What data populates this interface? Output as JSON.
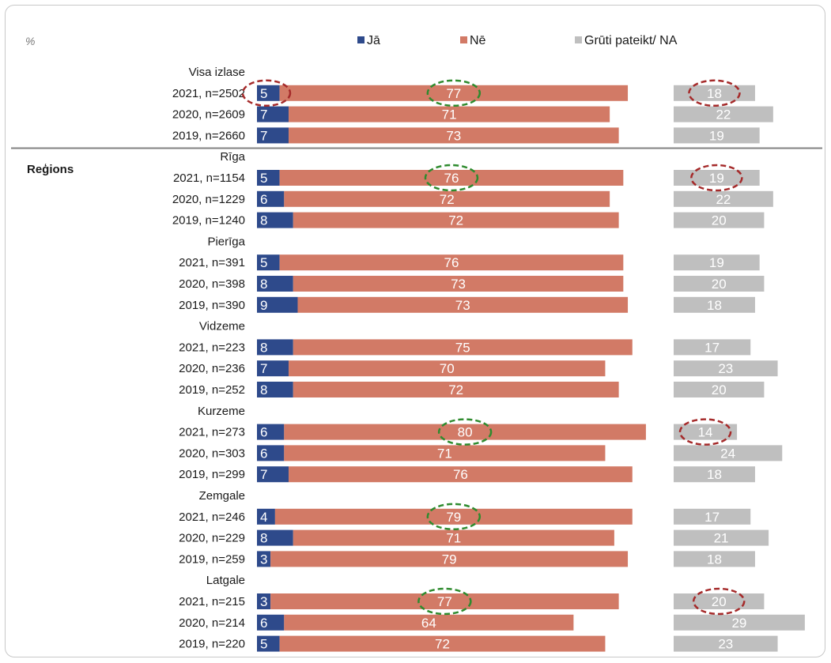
{
  "chart_data": {
    "type": "bar",
    "stacked_layout": "split",
    "unit_label": "%",
    "section_label": "Reģions",
    "colors": {
      "Jā": "#2e4a8b",
      "Nē": "#d27a66",
      "Grūti pateikt/ NA": "#bfbfbf",
      "circle_red": "#a52a2a",
      "circle_green": "#2e8b2e"
    },
    "series": [
      {
        "name": "Jā"
      },
      {
        "name": "Nē"
      },
      {
        "name": "Grūti pateikt/ NA"
      }
    ],
    "groups": [
      {
        "name": "Visa izlase",
        "rows": [
          {
            "label": "2021, n=2502",
            "values": [
              5,
              77,
              18
            ],
            "circled": [
              true,
              true,
              true
            ]
          },
          {
            "label": "2020, n=2609",
            "values": [
              7,
              71,
              22
            ]
          },
          {
            "label": "2019, n=2660",
            "values": [
              7,
              73,
              19
            ]
          }
        ]
      },
      {
        "name": "Rīga",
        "rows": [
          {
            "label": "2021, n=1154",
            "values": [
              5,
              76,
              19
            ],
            "circled": [
              false,
              true,
              true
            ]
          },
          {
            "label": "2020, n=1229",
            "values": [
              6,
              72,
              22
            ]
          },
          {
            "label": "2019, n=1240",
            "values": [
              8,
              72,
              20
            ]
          }
        ]
      },
      {
        "name": "Pierīga",
        "rows": [
          {
            "label": "2021, n=391",
            "values": [
              5,
              76,
              19
            ]
          },
          {
            "label": "2020, n=398",
            "values": [
              8,
              73,
              20
            ]
          },
          {
            "label": "2019, n=390",
            "values": [
              9,
              73,
              18
            ]
          }
        ]
      },
      {
        "name": "Vidzeme",
        "rows": [
          {
            "label": "2021, n=223",
            "values": [
              8,
              75,
              17
            ]
          },
          {
            "label": "2020, n=236",
            "values": [
              7,
              70,
              23
            ]
          },
          {
            "label": "2019, n=252",
            "values": [
              8,
              72,
              20
            ]
          }
        ]
      },
      {
        "name": "Kurzeme",
        "rows": [
          {
            "label": "2021, n=273",
            "values": [
              6,
              80,
              14
            ],
            "circled": [
              false,
              true,
              true
            ]
          },
          {
            "label": "2020, n=303",
            "values": [
              6,
              71,
              24
            ]
          },
          {
            "label": "2019, n=299",
            "values": [
              7,
              76,
              18
            ]
          }
        ]
      },
      {
        "name": "Zemgale",
        "rows": [
          {
            "label": "2021, n=246",
            "values": [
              4,
              79,
              17
            ],
            "circled": [
              false,
              true,
              false
            ]
          },
          {
            "label": "2020, n=229",
            "values": [
              8,
              71,
              21
            ]
          },
          {
            "label": "2019, n=259",
            "values": [
              3,
              79,
              18
            ]
          }
        ]
      },
      {
        "name": "Latgale",
        "rows": [
          {
            "label": "2021, n=215",
            "values": [
              3,
              77,
              20
            ],
            "circled": [
              false,
              true,
              true
            ]
          },
          {
            "label": "2020, n=214",
            "values": [
              6,
              64,
              29
            ]
          },
          {
            "label": "2019, n=220",
            "values": [
              5,
              72,
              23
            ]
          }
        ]
      }
    ]
  }
}
